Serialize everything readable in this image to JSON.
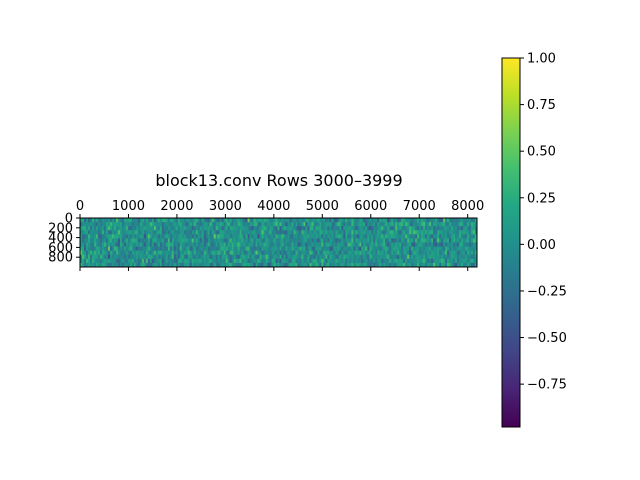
{
  "chart_data": {
    "type": "heatmap",
    "title": "block13.conv Rows 3000–3999",
    "xlabel": "",
    "ylabel": "",
    "x_axis_position": "top",
    "y_axis_inverted": true,
    "xlim": [
      0,
      8192
    ],
    "ylim": [
      0,
      1000
    ],
    "x_ticks": [
      0,
      1000,
      2000,
      3000,
      4000,
      5000,
      6000,
      7000,
      8000
    ],
    "x_tick_labels": [
      "0",
      "1000",
      "2000",
      "3000",
      "4000",
      "5000",
      "6000",
      "7000",
      "8000"
    ],
    "y_ticks": [
      0,
      200,
      400,
      600,
      800
    ],
    "y_tick_labels": [
      "0",
      "200",
      "400",
      "600",
      "800"
    ],
    "colormap": "viridis",
    "value_range": [
      -1.0,
      1.0
    ],
    "colorbar": {
      "ticks": [
        1.0,
        0.75,
        0.5,
        0.25,
        0.0,
        -0.25,
        -0.5,
        -0.75
      ],
      "tick_labels": [
        "1.00",
        "0.75",
        "0.50",
        "0.25",
        "0.00",
        "−0.25",
        "−0.50",
        "−0.75"
      ]
    },
    "grid": false,
    "note_on_values": "dense noise-like matrix centered near 0.0"
  }
}
